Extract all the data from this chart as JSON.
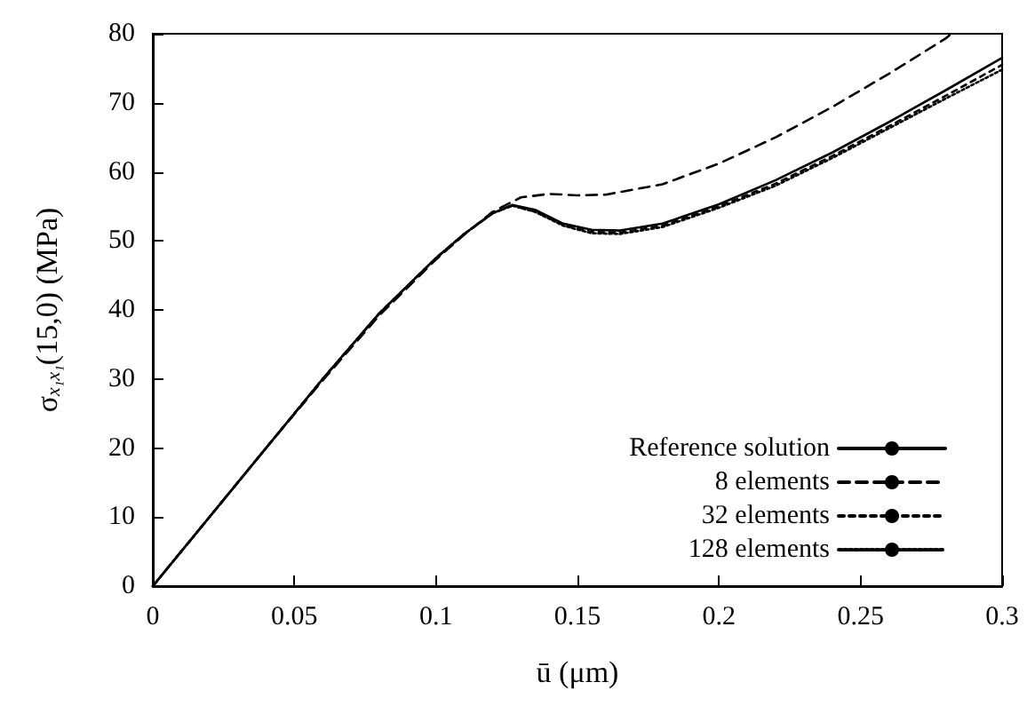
{
  "chart_data": {
    "type": "line",
    "xlabel": "ū (μm)",
    "ylabel": "σ$_{x₁x₁}$(15,0) (MPa)",
    "xlim": [
      0,
      0.3
    ],
    "xticks": [
      0,
      0.05,
      0.1,
      0.15,
      0.2,
      0.25,
      0.3
    ],
    "ylim": [
      0,
      80
    ],
    "yticks": [
      0,
      10,
      20,
      30,
      40,
      50,
      60,
      70,
      80
    ],
    "grid": false,
    "legend": "bottom right",
    "marker": "none",
    "series": [
      {
        "name": "Reference solution",
        "color": "#000000",
        "line_style": "solid",
        "x": [
          0,
          0.02,
          0.04,
          0.06,
          0.08,
          0.1,
          0.11,
          0.12,
          0.127,
          0.135,
          0.145,
          0.155,
          0.165,
          0.18,
          0.2,
          0.22,
          0.24,
          0.26,
          0.28,
          0.3
        ],
        "values": [
          0,
          10,
          20,
          30,
          39.5,
          47.5,
          51,
          54,
          55.2,
          54.5,
          52.5,
          51.6,
          51.5,
          52.5,
          55.3,
          58.8,
          62.8,
          67.2,
          71.8,
          76.5
        ]
      },
      {
        "name": "8 elements",
        "color": "#000000",
        "line_style": "dashed",
        "x": [
          0,
          0.02,
          0.04,
          0.06,
          0.08,
          0.1,
          0.11,
          0.12,
          0.13,
          0.14,
          0.15,
          0.16,
          0.18,
          0.2,
          0.22,
          0.24,
          0.26,
          0.28,
          0.282
        ],
        "values": [
          0,
          10,
          20,
          29.8,
          39.2,
          47.3,
          50.9,
          54.2,
          56.3,
          56.8,
          56.6,
          56.7,
          58.2,
          61.2,
          65,
          69.4,
          74.2,
          79.3,
          80
        ]
      },
      {
        "name": "32 elements",
        "color": "#000000",
        "line_style": "dashed",
        "x": [
          0,
          0.02,
          0.04,
          0.06,
          0.08,
          0.1,
          0.11,
          0.12,
          0.127,
          0.135,
          0.145,
          0.155,
          0.165,
          0.18,
          0.2,
          0.22,
          0.24,
          0.26,
          0.28,
          0.3
        ],
        "values": [
          0,
          10,
          20,
          30,
          39.5,
          47.5,
          51,
          54,
          55.1,
          54.3,
          52.3,
          51.3,
          51.2,
          52.2,
          55,
          58.3,
          62.3,
          66.6,
          71,
          75.5
        ]
      },
      {
        "name": "128 elements",
        "color": "#000000",
        "line_style": "dotted",
        "x": [
          0,
          0.02,
          0.04,
          0.06,
          0.08,
          0.1,
          0.11,
          0.12,
          0.127,
          0.135,
          0.145,
          0.155,
          0.165,
          0.18,
          0.2,
          0.22,
          0.24,
          0.26,
          0.28,
          0.3
        ],
        "values": [
          0,
          10,
          20,
          30,
          39.5,
          47.5,
          51,
          54,
          55.1,
          54.2,
          52.2,
          51.1,
          51,
          52,
          54.8,
          58,
          62,
          66.3,
          70.6,
          74.8
        ]
      }
    ]
  }
}
